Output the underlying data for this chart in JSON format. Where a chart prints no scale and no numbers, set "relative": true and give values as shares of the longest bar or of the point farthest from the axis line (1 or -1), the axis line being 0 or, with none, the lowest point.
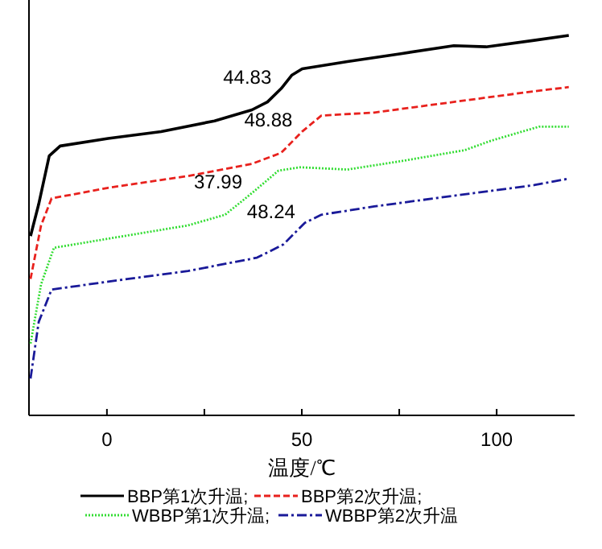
{
  "chart_data": {
    "type": "line",
    "xlabel": "温度/℃",
    "relative": true,
    "xlim": [
      -20,
      120
    ],
    "xticks": [
      0,
      {
        "value": 25,
        "label": null
      },
      50,
      {
        "value": 75,
        "label": null
      },
      100
    ],
    "tick_labels": "x",
    "legend": "bottom",
    "grid": false,
    "annotations": [
      {
        "text": "44.83",
        "x": 44.7,
        "y": 0.86
      },
      {
        "text": "48.88",
        "x": 50.1,
        "y": 0.747
      },
      {
        "text": "37.99",
        "x": 37.2,
        "y": 0.585
      },
      {
        "text": "48.24",
        "x": 50.8,
        "y": 0.507
      }
    ],
    "series": [
      {
        "name": "BBP第1次升温;",
        "color": "#000000",
        "line_style": "solid",
        "x": [
          -19.6,
          -17.5,
          -14.8,
          -12.0,
          0.3,
          13.9,
          27.6,
          37.2,
          41.2,
          44.7,
          47.4,
          50.1,
          61.7,
          75.4,
          89,
          97.3,
          109.6,
          118.5
        ],
        "values": [
          0.472,
          0.556,
          0.683,
          0.709,
          0.729,
          0.747,
          0.775,
          0.804,
          0.825,
          0.86,
          0.895,
          0.912,
          0.931,
          0.952,
          0.973,
          0.97,
          0.987,
          1
        ]
      },
      {
        "name": "BBP第2次升温;",
        "color": "#e8211d",
        "line_style": "dashed",
        "x": [
          -19.6,
          -16.9,
          -14.2,
          0.3,
          20.8,
          37.2,
          44.7,
          50.1,
          55,
          68.6,
          89,
          109.6,
          118.5
        ],
        "values": [
          0.359,
          0.5,
          0.571,
          0.599,
          0.63,
          0.662,
          0.691,
          0.747,
          0.789,
          0.797,
          0.825,
          0.853,
          0.864
        ]
      },
      {
        "name": "WBBP第1次升温;",
        "color": "#33dd33",
        "line_style": "dotted",
        "x": [
          -19.6,
          -16.9,
          -13.6,
          0.3,
          20.8,
          30.3,
          37.2,
          44,
          49.5,
          61.7,
          75.4,
          91.8,
          98.6,
          110.9,
          118.5
        ],
        "values": [
          0.189,
          0.345,
          0.441,
          0.465,
          0.5,
          0.528,
          0.585,
          0.644,
          0.653,
          0.647,
          0.669,
          0.698,
          0.723,
          0.76,
          0.76
        ]
      },
      {
        "name": "WBBP第2次升温",
        "color": "#1a1a99",
        "line_style": "dashdot",
        "x": [
          -19.6,
          -17.5,
          -14.2,
          0.3,
          20.8,
          38.5,
          45.3,
          50.8,
          55,
          68.6,
          89,
          109.6,
          118.5
        ],
        "values": [
          0.097,
          0.246,
          0.331,
          0.352,
          0.38,
          0.415,
          0.45,
          0.507,
          0.528,
          0.55,
          0.578,
          0.606,
          0.623
        ]
      }
    ]
  }
}
